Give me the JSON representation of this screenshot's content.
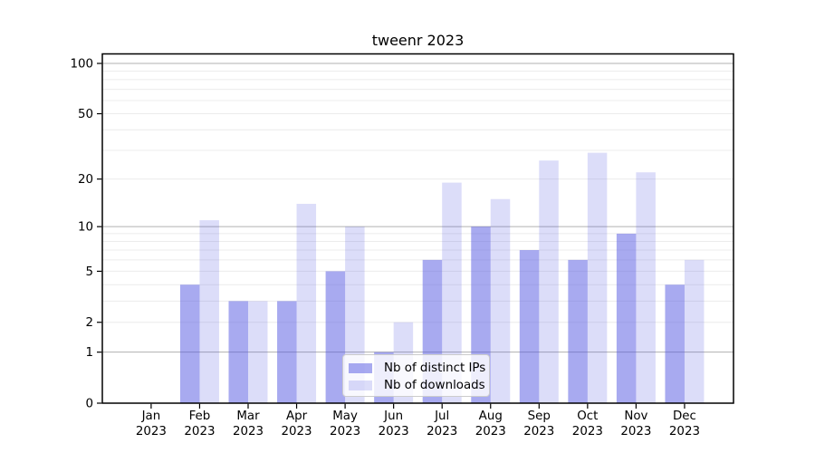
{
  "chart_data": {
    "type": "bar",
    "title": "tweenr 2023",
    "x_axis": {
      "categories": [
        "Jan",
        "Feb",
        "Mar",
        "Apr",
        "May",
        "Jun",
        "Jul",
        "Aug",
        "Sep",
        "Oct",
        "Nov",
        "Dec"
      ],
      "year": "2023"
    },
    "y_axis": {
      "scale": "log1p",
      "tick_labels": [
        100,
        50,
        20,
        10,
        5,
        2,
        1,
        0
      ],
      "major_gridlines": [
        1,
        10,
        100
      ],
      "minor_gridlines": [
        2,
        3,
        4,
        5,
        6,
        7,
        8,
        9,
        20,
        30,
        40,
        50,
        60,
        70,
        80,
        90
      ],
      "top_value": 112
    },
    "series": [
      {
        "name": "Nb of distinct IPs",
        "color": "rgba(81,85,225,0.5)",
        "values": [
          0,
          4,
          3,
          3,
          5,
          1,
          6,
          10,
          7,
          6,
          9,
          4
        ]
      },
      {
        "name": "Nb of downloads",
        "color": "rgba(81,85,225,0.2)",
        "values": [
          0,
          11,
          3,
          14,
          10,
          2,
          19,
          15,
          26,
          29,
          22,
          6
        ]
      }
    ],
    "legend": {
      "position": "lower-center"
    },
    "colors": {
      "major_grid": "#b0b0b0",
      "minor_grid": "#ececec",
      "frame": "#000000",
      "text": "#000000"
    }
  }
}
